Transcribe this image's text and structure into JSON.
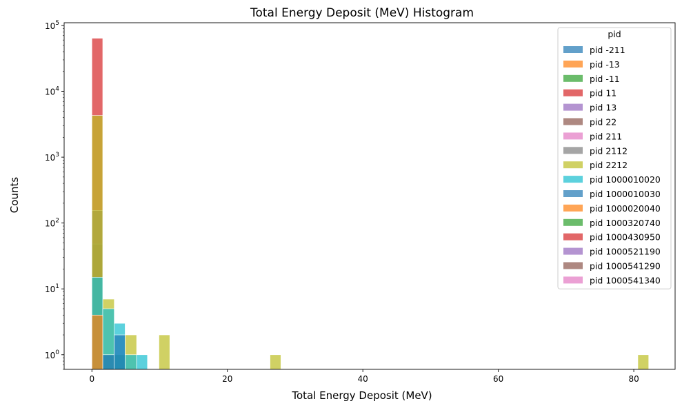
{
  "chart_data": {
    "type": "bar",
    "title": "Total Energy Deposit (MeV) Histogram",
    "xlabel": "Total Energy Deposit (MeV)",
    "ylabel": "Counts",
    "xlim": [
      -4.1,
      86.1
    ],
    "ylim": [
      0.6,
      110000
    ],
    "yscale": "log",
    "grid": false,
    "legend_placement": "top-right",
    "x_ticks": [
      {
        "value": 0,
        "label": "0"
      },
      {
        "value": 20,
        "label": "20"
      },
      {
        "value": 40,
        "label": "40"
      },
      {
        "value": 60,
        "label": "60"
      },
      {
        "value": 80,
        "label": "80"
      }
    ],
    "y_ticks": [
      {
        "value": 1,
        "base": "10",
        "exp": "0"
      },
      {
        "value": 10,
        "base": "10",
        "exp": "1"
      },
      {
        "value": 100,
        "base": "10",
        "exp": "2"
      },
      {
        "value": 1000,
        "base": "10",
        "exp": "3"
      },
      {
        "value": 10000,
        "base": "10",
        "exp": "4"
      },
      {
        "value": 100000,
        "base": "10",
        "exp": "5"
      }
    ],
    "legend_title": "pid",
    "series": [
      {
        "name": "pid -211",
        "color": "#1f77b4",
        "bins": []
      },
      {
        "name": "pid -13",
        "color": "#ff7f0e",
        "bins": []
      },
      {
        "name": "pid -11",
        "color": "#2ca02c",
        "bins": [
          [
            3.3,
            4.9,
            1
          ]
        ]
      },
      {
        "name": "pid 11",
        "color": "#d62728",
        "bins": [
          [
            0,
            1.6,
            64000
          ]
        ]
      },
      {
        "name": "pid 13",
        "color": "#9467bd",
        "bins": [
          [
            0,
            1.6,
            1
          ],
          [
            1.6,
            3.3,
            1
          ]
        ]
      },
      {
        "name": "pid 22",
        "color": "#8c564b",
        "bins": [
          [
            0,
            1.6,
            48
          ]
        ]
      },
      {
        "name": "pid 211",
        "color": "#e377c2",
        "bins": []
      },
      {
        "name": "pid 2112",
        "color": "#7f7f7f",
        "bins": [
          [
            0,
            1.6,
            155
          ]
        ]
      },
      {
        "name": "pid 2212",
        "color": "#bcbd22",
        "bins": [
          [
            0,
            1.6,
            4300
          ],
          [
            1.6,
            3.3,
            7
          ],
          [
            4.9,
            6.6,
            2
          ],
          [
            9.9,
            11.5,
            2
          ],
          [
            26.3,
            27.9,
            1
          ],
          [
            80.6,
            82.2,
            1
          ]
        ]
      },
      {
        "name": "pid 1000010020",
        "color": "#17becf",
        "bins": [
          [
            0,
            1.6,
            15
          ],
          [
            1.6,
            3.3,
            5
          ],
          [
            3.3,
            4.9,
            3
          ],
          [
            4.9,
            6.6,
            1
          ],
          [
            6.6,
            8.2,
            1
          ]
        ]
      },
      {
        "name": "pid 1000010030",
        "color": "#1f77b4",
        "bins": [
          [
            1.6,
            3.3,
            1
          ],
          [
            3.3,
            4.9,
            2
          ]
        ]
      },
      {
        "name": "pid 1000020040",
        "color": "#ff7f0e",
        "bins": [
          [
            0,
            1.6,
            4
          ]
        ]
      },
      {
        "name": "pid 1000320740",
        "color": "#2ca02c",
        "bins": []
      },
      {
        "name": "pid 1000430950",
        "color": "#d62728",
        "bins": []
      },
      {
        "name": "pid 1000521190",
        "color": "#9467bd",
        "bins": []
      },
      {
        "name": "pid 1000541290",
        "color": "#8c564b",
        "bins": []
      },
      {
        "name": "pid 1000541340",
        "color": "#e377c2",
        "bins": []
      }
    ]
  }
}
